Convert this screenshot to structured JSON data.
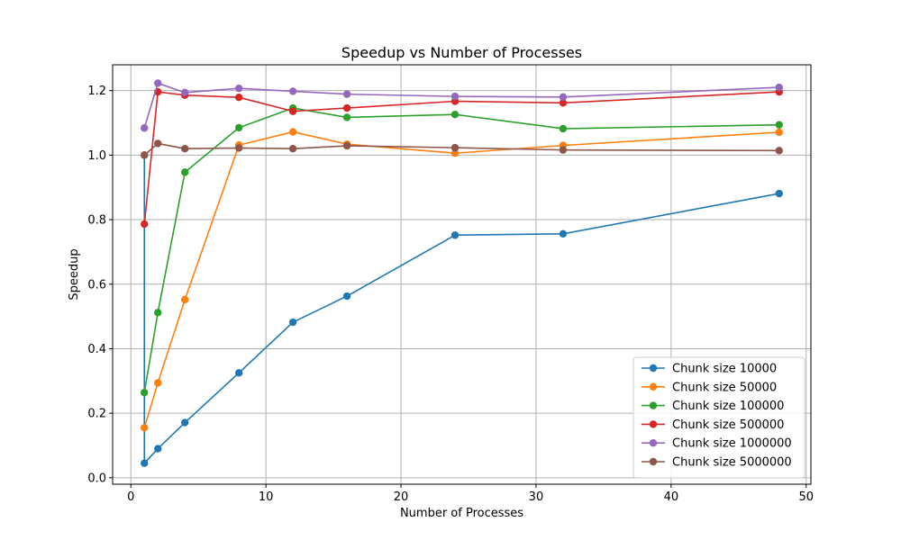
{
  "chart_data": {
    "type": "line",
    "title": "Speedup vs Number of Processes",
    "xlabel": "Number of Processes",
    "ylabel": "Speedup",
    "xlim": [
      -1.35,
      50.35
    ],
    "ylim": [
      -0.02,
      1.28
    ],
    "xticks": [
      0,
      10,
      20,
      30,
      40,
      50
    ],
    "xtick_labels": [
      "0",
      "10",
      "20",
      "30",
      "40",
      "50"
    ],
    "yticks": [
      0.0,
      0.2,
      0.4,
      0.6,
      0.8,
      1.0,
      1.2
    ],
    "ytick_labels": [
      "0.0",
      "0.2",
      "0.4",
      "0.6",
      "0.8",
      "1.0",
      "1.2"
    ],
    "grid": true,
    "legend_position": "lower-right",
    "x": [
      1,
      2,
      4,
      8,
      12,
      16,
      24,
      32,
      48
    ],
    "series": [
      {
        "name": "Chunk size 10000",
        "color": "#1f77b4",
        "x": [
          1,
          1,
          2,
          4,
          8,
          12,
          16,
          24,
          32,
          48
        ],
        "values": [
          1.0,
          0.045,
          0.09,
          0.171,
          0.325,
          0.482,
          0.563,
          0.752,
          0.756,
          0.881
        ]
      },
      {
        "name": "Chunk size 50000",
        "color": "#ff7f0e",
        "values": [
          0.155,
          0.294,
          0.552,
          1.031,
          1.072,
          1.034,
          1.006,
          1.03,
          1.071
        ]
      },
      {
        "name": "Chunk size 100000",
        "color": "#2ca02c",
        "values": [
          0.264,
          0.512,
          0.947,
          1.085,
          1.146,
          1.117,
          1.126,
          1.082,
          1.094
        ]
      },
      {
        "name": "Chunk size 500000",
        "color": "#d62728",
        "values": [
          0.786,
          1.196,
          1.186,
          1.179,
          1.136,
          1.146,
          1.167,
          1.162,
          1.196
        ]
      },
      {
        "name": "Chunk size 1000000",
        "color": "#9467bd",
        "values": [
          1.084,
          1.223,
          1.194,
          1.207,
          1.198,
          1.189,
          1.182,
          1.18,
          1.21
        ]
      },
      {
        "name": "Chunk size 5000000",
        "color": "#8c564b",
        "values": [
          1.0,
          1.036,
          1.02,
          1.022,
          1.02,
          1.029,
          1.023,
          1.016,
          1.014
        ]
      }
    ]
  }
}
